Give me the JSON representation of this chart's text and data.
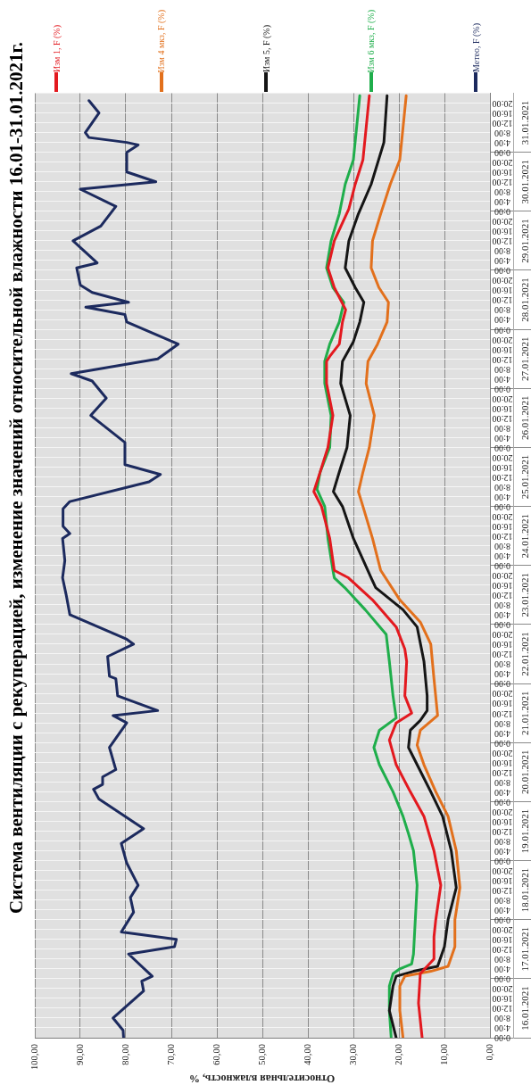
{
  "chart_data": {
    "type": "line",
    "orientation": "horizontal",
    "title": "Система вентиляции с рекуперацией, изменение значений относительной влажности 16.01-31.01.2021г.",
    "xlabel": "Относительная влажность, %",
    "xlim": [
      100,
      0
    ],
    "xticks": [
      {
        "value": 100,
        "label": "100,00"
      },
      {
        "value": 90,
        "label": "90,00"
      },
      {
        "value": 80,
        "label": "80,00"
      },
      {
        "value": 70,
        "label": "70,00"
      },
      {
        "value": 60,
        "label": "60,00"
      },
      {
        "value": 50,
        "label": "50,00"
      },
      {
        "value": 40,
        "label": "40,00"
      },
      {
        "value": 30,
        "label": "30,00"
      },
      {
        "value": 20,
        "label": "20,00"
      },
      {
        "value": 10,
        "label": "10,00"
      },
      {
        "value": 0,
        "label": "0,00"
      }
    ],
    "ylim": [
      "2021-01-16T00:00",
      "2021-02-01T00:00"
    ],
    "yticks": [
      {
        "value": "2021-01-16T00:00",
        "label": "0:00"
      },
      {
        "value": "2021-01-16T04:00",
        "label": "4:00"
      },
      {
        "value": "2021-01-16T08:00",
        "label": "8:00"
      },
      {
        "value": "2021-01-16T12:00",
        "label": "12:00"
      },
      {
        "value": "2021-01-16T16:00",
        "label": "16:00"
      },
      {
        "value": "2021-01-16T20:00",
        "label": "20:00"
      },
      {
        "value": "2021-01-17T00:00",
        "label": "0:00"
      },
      {
        "value": "2021-01-17T04:00",
        "label": "4:00"
      },
      {
        "value": "2021-01-17T08:00",
        "label": "8:00"
      },
      {
        "value": "2021-01-17T12:00",
        "label": "12:00"
      },
      {
        "value": "2021-01-17T16:00",
        "label": "16:00"
      },
      {
        "value": "2021-01-17T20:00",
        "label": "20:00"
      },
      {
        "value": "2021-01-18T00:00",
        "label": "0:00"
      },
      {
        "value": "2021-01-18T04:00",
        "label": "4:00"
      },
      {
        "value": "2021-01-18T08:00",
        "label": "8:00"
      },
      {
        "value": "2021-01-18T12:00",
        "label": "12:00"
      },
      {
        "value": "2021-01-18T16:00",
        "label": "16:00"
      },
      {
        "value": "2021-01-18T20:00",
        "label": "20:00"
      },
      {
        "value": "2021-01-19T00:00",
        "label": "0:00"
      },
      {
        "value": "2021-01-19T04:00",
        "label": "4:00"
      },
      {
        "value": "2021-01-19T08:00",
        "label": "8:00"
      },
      {
        "value": "2021-01-19T12:00",
        "label": "12:00"
      },
      {
        "value": "2021-01-19T16:00",
        "label": "16:00"
      },
      {
        "value": "2021-01-19T20:00",
        "label": "20:00"
      },
      {
        "value": "2021-01-20T00:00",
        "label": "0:00"
      },
      {
        "value": "2021-01-20T04:00",
        "label": "4:00"
      },
      {
        "value": "2021-01-20T08:00",
        "label": "8:00"
      },
      {
        "value": "2021-01-20T12:00",
        "label": "12:00"
      },
      {
        "value": "2021-01-20T16:00",
        "label": "16:00"
      },
      {
        "value": "2021-01-20T20:00",
        "label": "20:00"
      },
      {
        "value": "2021-01-21T00:00",
        "label": "0:00"
      },
      {
        "value": "2021-01-21T04:00",
        "label": "4:00"
      },
      {
        "value": "2021-01-21T08:00",
        "label": "8:00"
      },
      {
        "value": "2021-01-21T12:00",
        "label": "12:00"
      },
      {
        "value": "2021-01-21T16:00",
        "label": "16:00"
      },
      {
        "value": "2021-01-21T20:00",
        "label": "20:00"
      },
      {
        "value": "2021-01-22T00:00",
        "label": "0:00"
      },
      {
        "value": "2021-01-22T04:00",
        "label": "4:00"
      },
      {
        "value": "2021-01-22T08:00",
        "label": "8:00"
      },
      {
        "value": "2021-01-22T12:00",
        "label": "12:00"
      },
      {
        "value": "2021-01-22T16:00",
        "label": "16:00"
      },
      {
        "value": "2021-01-22T20:00",
        "label": "20:00"
      },
      {
        "value": "2021-01-23T00:00",
        "label": "0:00"
      },
      {
        "value": "2021-01-23T04:00",
        "label": "4:00"
      },
      {
        "value": "2021-01-23T08:00",
        "label": "8:00"
      },
      {
        "value": "2021-01-23T12:00",
        "label": "12:00"
      },
      {
        "value": "2021-01-23T16:00",
        "label": "16:00"
      },
      {
        "value": "2021-01-23T20:00",
        "label": "20:00"
      },
      {
        "value": "2021-01-24T00:00",
        "label": "0:00"
      },
      {
        "value": "2021-01-24T04:00",
        "label": "4:00"
      },
      {
        "value": "2021-01-24T08:00",
        "label": "8:00"
      },
      {
        "value": "2021-01-24T12:00",
        "label": "12:00"
      },
      {
        "value": "2021-01-24T16:00",
        "label": "16:00"
      },
      {
        "value": "2021-01-24T20:00",
        "label": "20:00"
      },
      {
        "value": "2021-01-25T00:00",
        "label": "0:00"
      },
      {
        "value": "2021-01-25T04:00",
        "label": "4:00"
      },
      {
        "value": "2021-01-25T08:00",
        "label": "8:00"
      },
      {
        "value": "2021-01-25T12:00",
        "label": "12:00"
      },
      {
        "value": "2021-01-25T16:00",
        "label": "16:00"
      },
      {
        "value": "2021-01-25T20:00",
        "label": "20:00"
      },
      {
        "value": "2021-01-26T00:00",
        "label": "0:00"
      },
      {
        "value": "2021-01-26T04:00",
        "label": "4:00"
      },
      {
        "value": "2021-01-26T08:00",
        "label": "8:00"
      },
      {
        "value": "2021-01-26T12:00",
        "label": "12:00"
      },
      {
        "value": "2021-01-26T16:00",
        "label": "16:00"
      },
      {
        "value": "2021-01-26T20:00",
        "label": "20:00"
      },
      {
        "value": "2021-01-27T00:00",
        "label": "0:00"
      },
      {
        "value": "2021-01-27T04:00",
        "label": "4:00"
      },
      {
        "value": "2021-01-27T08:00",
        "label": "8:00"
      },
      {
        "value": "2021-01-27T12:00",
        "label": "12:00"
      },
      {
        "value": "2021-01-27T16:00",
        "label": "16:00"
      },
      {
        "value": "2021-01-27T20:00",
        "label": "20:00"
      },
      {
        "value": "2021-01-28T00:00",
        "label": "0:00"
      },
      {
        "value": "2021-01-28T04:00",
        "label": "4:00"
      },
      {
        "value": "2021-01-28T08:00",
        "label": "8:00"
      },
      {
        "value": "2021-01-28T12:00",
        "label": "12:00"
      },
      {
        "value": "2021-01-28T16:00",
        "label": "16:00"
      },
      {
        "value": "2021-01-28T20:00",
        "label": "20:00"
      },
      {
        "value": "2021-01-29T00:00",
        "label": "0:00"
      },
      {
        "value": "2021-01-29T04:00",
        "label": "4:00"
      },
      {
        "value": "2021-01-29T08:00",
        "label": "8:00"
      },
      {
        "value": "2021-01-29T12:00",
        "label": "12:00"
      },
      {
        "value": "2021-01-29T16:00",
        "label": "16:00"
      },
      {
        "value": "2021-01-29T20:00",
        "label": "20:00"
      },
      {
        "value": "2021-01-30T00:00",
        "label": "0:00"
      },
      {
        "value": "2021-01-30T04:00",
        "label": "4:00"
      },
      {
        "value": "2021-01-30T08:00",
        "label": "8:00"
      },
      {
        "value": "2021-01-30T12:00",
        "label": "12:00"
      },
      {
        "value": "2021-01-30T16:00",
        "label": "16:00"
      },
      {
        "value": "2021-01-30T20:00",
        "label": "20:00"
      },
      {
        "value": "2021-01-31T00:00",
        "label": "0:00"
      },
      {
        "value": "2021-01-31T04:00",
        "label": "4:00"
      },
      {
        "value": "2021-01-31T08:00",
        "label": "8:00"
      },
      {
        "value": "2021-01-31T12:00",
        "label": "12:00"
      },
      {
        "value": "2021-01-31T16:00",
        "label": "16:00"
      },
      {
        "value": "2021-01-31T20:00",
        "label": "20:00"
      }
    ],
    "y2lim": [
      "2021-01-16T00:00",
      "2021-02-01T00:00"
    ],
    "y2ticks": [
      {
        "value": "2021-01-16T12:00",
        "label": "16.01.2021"
      },
      {
        "value": "2021-01-17T12:00",
        "label": "17.01.2021"
      },
      {
        "value": "2021-01-18T12:00",
        "label": "18.01.2021"
      },
      {
        "value": "2021-01-19T12:00",
        "label": "19.01.2021"
      },
      {
        "value": "2021-01-20T12:00",
        "label": "20.01.2021"
      },
      {
        "value": "2021-01-21T12:00",
        "label": "21.01.2021"
      },
      {
        "value": "2021-01-22T12:00",
        "label": "22.01.2021"
      },
      {
        "value": "2021-01-23T12:00",
        "label": "23.01.2021"
      },
      {
        "value": "2021-01-24T12:00",
        "label": "24.01.2021"
      },
      {
        "value": "2021-01-25T12:00",
        "label": "25.01.2021"
      },
      {
        "value": "2021-01-26T12:00",
        "label": "26.01.2021"
      },
      {
        "value": "2021-01-27T12:00",
        "label": "27.01.2021"
      },
      {
        "value": "2021-01-28T12:00",
        "label": "28.01.2021"
      },
      {
        "value": "2021-01-29T12:00",
        "label": "29.01.2021"
      },
      {
        "value": "2021-01-30T12:00",
        "label": "30.01.2021"
      },
      {
        "value": "2021-01-31T12:00",
        "label": "31.01.2021"
      }
    ],
    "grid": true,
    "legend": "top",
    "series": [
      {
        "name": "Изм 1, F (%)",
        "color": "#e3191f",
        "x": [
          "2021-01-16T00:00",
          "2021-01-16T14:00",
          "2021-01-17T02:00",
          "2021-01-17T08:00",
          "2021-01-17T17:00",
          "2021-01-18T00:00",
          "2021-01-18T14:00",
          "2021-01-19T04:00",
          "2021-01-19T18:00",
          "2021-01-20T04:00",
          "2021-01-20T15:00",
          "2021-01-21T01:00",
          "2021-01-21T08:00",
          "2021-01-21T12:00",
          "2021-01-21T19:00",
          "2021-01-22T09:00",
          "2021-01-22T14:00",
          "2021-01-22T23:00",
          "2021-01-23T10:00",
          "2021-01-23T19:00",
          "2021-01-23T22:00",
          "2021-01-24T11:00",
          "2021-01-25T00:00",
          "2021-01-25T06:00",
          "2021-01-25T14:00",
          "2021-01-26T00:00",
          "2021-01-26T13:00",
          "2021-01-27T02:00",
          "2021-01-27T11:00",
          "2021-01-27T13:00",
          "2021-01-27T18:00",
          "2021-01-28T03:00",
          "2021-01-28T08:00",
          "2021-01-28T17:00",
          "2021-01-29T01:00",
          "2021-01-29T12:00",
          "2021-01-30T01:00",
          "2021-01-30T11:00",
          "2021-01-30T21:00",
          "2021-01-31T10:00",
          "2021-01-31T23:00"
        ],
        "values": [
          14.9,
          15.7,
          15.3,
          12.3,
          12.3,
          11.9,
          10.8,
          12.3,
          14.5,
          17.5,
          20.6,
          22.1,
          20.6,
          17.2,
          18.7,
          18.3,
          18.7,
          20.6,
          25.8,
          31.1,
          34.2,
          35.2,
          37.0,
          38.7,
          37.3,
          35.6,
          34.5,
          35.9,
          35.9,
          35.2,
          33.1,
          32.4,
          31.7,
          34.2,
          35.6,
          34.2,
          31.0,
          29.6,
          27.9,
          27.2,
          26.5
        ]
      },
      {
        "name": "Изм 4 мкз, F (%)",
        "color": "#e2701c",
        "x": [
          "2021-01-16T00:00",
          "2021-01-16T11:00",
          "2021-01-16T21:00",
          "2021-01-17T01:00",
          "2021-01-17T03:00",
          "2021-01-17T05:00",
          "2021-01-17T13:00",
          "2021-01-18T00:00",
          "2021-01-18T13:00",
          "2021-01-19T04:00",
          "2021-01-19T18:00",
          "2021-01-20T04:00",
          "2021-01-20T15:00",
          "2021-01-20T23:00",
          "2021-01-21T05:00",
          "2021-01-21T11:00",
          "2021-01-22T02:00",
          "2021-01-22T16:00",
          "2021-01-23T01:00",
          "2021-01-23T10:00",
          "2021-01-23T22:00",
          "2021-01-24T11:00",
          "2021-01-25T00:00",
          "2021-01-25T06:00",
          "2021-01-25T14:00",
          "2021-01-26T00:00",
          "2021-01-26T13:00",
          "2021-01-27T02:00",
          "2021-01-27T11:00",
          "2021-01-27T18:00",
          "2021-01-28T03:00",
          "2021-01-28T11:00",
          "2021-01-28T17:00",
          "2021-01-29T01:00",
          "2021-01-29T12:00",
          "2021-01-29T23:00",
          "2021-01-30T11:00",
          "2021-01-30T21:00",
          "2021-01-31T10:00",
          "2021-01-31T23:00"
        ],
        "values": [
          19.1,
          19.8,
          19.8,
          18.7,
          13.0,
          9.2,
          7.7,
          7.7,
          6.6,
          7.4,
          9.2,
          11.9,
          14.5,
          16.0,
          15.3,
          11.5,
          12.3,
          13.0,
          15.3,
          19.8,
          24.0,
          25.8,
          27.9,
          28.9,
          27.9,
          26.5,
          25.4,
          27.2,
          26.8,
          24.7,
          22.6,
          22.3,
          24.4,
          26.1,
          25.8,
          24.0,
          21.9,
          19.8,
          19.1,
          18.4
        ]
      },
      {
        "name": "Изм 5, F (%)",
        "color": "#151515",
        "x": [
          "2021-01-16T00:00",
          "2021-01-16T11:00",
          "2021-01-16T21:00",
          "2021-01-17T01:00",
          "2021-01-17T03:00",
          "2021-01-17T05:00",
          "2021-01-17T13:00",
          "2021-01-18T00:00",
          "2021-01-18T13:00",
          "2021-01-19T04:00",
          "2021-01-19T18:00",
          "2021-01-20T04:00",
          "2021-01-20T15:00",
          "2021-01-20T22:00",
          "2021-01-21T05:00",
          "2021-01-21T09:00",
          "2021-01-21T13:00",
          "2021-01-21T19:00",
          "2021-01-22T09:00",
          "2021-01-22T23:00",
          "2021-01-23T06:00",
          "2021-01-23T15:00",
          "2021-01-23T19:00",
          "2021-01-24T11:00",
          "2021-01-25T00:00",
          "2021-01-25T06:00",
          "2021-01-25T14:00",
          "2021-01-26T00:00",
          "2021-01-26T13:00",
          "2021-01-27T02:00",
          "2021-01-27T11:00",
          "2021-01-27T19:00",
          "2021-01-28T03:00",
          "2021-01-28T11:00",
          "2021-01-28T17:00",
          "2021-01-29T01:00",
          "2021-01-29T12:00",
          "2021-01-29T23:00",
          "2021-01-30T11:00",
          "2021-01-31T04:00",
          "2021-01-31T23:00"
        ],
        "values": [
          20.6,
          22.1,
          21.3,
          20.6,
          16.8,
          11.5,
          10.0,
          9.2,
          7.4,
          8.5,
          10.4,
          13.0,
          16.0,
          17.9,
          17.5,
          15.3,
          13.8,
          13.8,
          14.5,
          16.0,
          19.1,
          25.1,
          26.1,
          30.0,
          32.4,
          34.4,
          33.1,
          31.4,
          30.7,
          32.8,
          32.4,
          30.0,
          28.6,
          27.7,
          29.6,
          31.8,
          31.0,
          28.9,
          26.1,
          23.3,
          22.6
        ]
      },
      {
        "name": "Изм 6 мкз, F (%)",
        "color": "#1fae4b",
        "x": [
          "2021-01-16T00:00",
          "2021-01-16T11:00",
          "2021-01-16T21:00",
          "2021-01-17T02:00",
          "2021-01-17T04:00",
          "2021-01-17T06:00",
          "2021-01-17T10:00",
          "2021-01-18T00:00",
          "2021-01-18T14:00",
          "2021-01-19T04:00",
          "2021-01-19T11:00",
          "2021-01-19T18:00",
          "2021-01-20T04:00",
          "2021-01-20T15:00",
          "2021-01-20T22:00",
          "2021-01-21T05:00",
          "2021-01-21T10:00",
          "2021-01-21T19:00",
          "2021-01-22T09:00",
          "2021-01-22T20:00",
          "2021-01-23T06:00",
          "2021-01-23T15:00",
          "2021-01-23T19:00",
          "2021-01-23T22:00",
          "2021-01-24T11:00",
          "2021-01-25T00:00",
          "2021-01-25T07:00",
          "2021-01-25T14:00",
          "2021-01-26T00:00",
          "2021-01-26T13:00",
          "2021-01-27T02:00",
          "2021-01-27T11:00",
          "2021-01-27T18:00",
          "2021-01-28T03:00",
          "2021-01-28T11:00",
          "2021-01-28T17:00",
          "2021-01-29T01:00",
          "2021-01-29T12:00",
          "2021-01-29T23:00",
          "2021-01-30T11:00",
          "2021-01-30T21:00",
          "2021-01-31T10:00",
          "2021-01-31T23:00"
        ],
        "values": [
          21.7,
          22.1,
          22.1,
          21.3,
          19.8,
          17.2,
          16.8,
          16.4,
          16.0,
          16.8,
          17.9,
          19.1,
          21.3,
          24.3,
          25.5,
          24.3,
          20.6,
          21.3,
          22.1,
          22.8,
          27.4,
          31.9,
          34.2,
          34.5,
          35.6,
          36.3,
          38.0,
          37.3,
          35.2,
          34.9,
          36.3,
          36.3,
          35.2,
          33.1,
          32.1,
          34.5,
          35.9,
          34.9,
          33.1,
          31.8,
          30.0,
          29.3,
          28.6
        ]
      },
      {
        "name": "Метео, F (%)",
        "color": "#1c2a5e",
        "x": [
          "2021-01-16T00:00",
          "2021-01-16T03:00",
          "2021-01-16T08:00",
          "2021-01-16T19:00",
          "2021-01-16T23:00",
          "2021-01-17T01:00",
          "2021-01-17T10:00",
          "2021-01-17T13:00",
          "2021-01-17T16:00",
          "2021-01-17T19:00",
          "2021-01-18T03:00",
          "2021-01-18T09:00",
          "2021-01-18T14:00",
          "2021-01-18T23:00",
          "2021-01-19T07:00",
          "2021-01-19T13:00",
          "2021-01-20T01:00",
          "2021-01-20T05:00",
          "2021-01-20T07:00",
          "2021-01-20T10:00",
          "2021-01-20T13:00",
          "2021-01-20T22:00",
          "2021-01-21T08:00",
          "2021-01-21T11:00",
          "2021-01-21T13:00",
          "2021-01-21T19:00",
          "2021-01-22T02:00",
          "2021-01-22T03:00",
          "2021-01-22T11:00",
          "2021-01-22T16:00",
          "2021-01-22T18:00",
          "2021-01-23T04:00",
          "2021-01-23T12:00",
          "2021-01-23T19:00",
          "2021-01-24T02:00",
          "2021-01-24T11:00",
          "2021-01-24T13:00",
          "2021-01-24T16:00",
          "2021-01-24T23:00",
          "2021-01-25T02:00",
          "2021-01-25T10:00",
          "2021-01-25T13:00",
          "2021-01-25T17:00",
          "2021-01-26T02:00",
          "2021-01-26T13:00",
          "2021-01-26T20:00",
          "2021-01-27T03:00",
          "2021-01-27T06:00",
          "2021-01-27T12:00",
          "2021-01-27T18:00",
          "2021-01-28T03:00",
          "2021-01-28T06:00",
          "2021-01-28T09:00",
          "2021-01-28T11:00",
          "2021-01-28T15:00",
          "2021-01-28T18:00",
          "2021-01-29T01:00",
          "2021-01-29T03:00",
          "2021-01-29T12:00",
          "2021-01-29T18:00",
          "2021-01-30T02:00",
          "2021-01-30T09:00",
          "2021-01-30T12:00",
          "2021-01-30T16:00",
          "2021-01-31T00:00",
          "2021-01-31T03:00",
          "2021-01-31T04:00",
          "2021-01-31T06:00",
          "2021-01-31T08:00",
          "2021-01-31T16:00",
          "2021-01-31T21:00"
        ],
        "values": [
          80.5,
          80.6,
          82.8,
          76.1,
          76.5,
          74.2,
          79.4,
          69.3,
          68.9,
          81.0,
          78.3,
          79.0,
          77.3,
          79.8,
          81.0,
          76.1,
          85.9,
          87.1,
          85.1,
          85.1,
          82.2,
          83.6,
          79.8,
          82.8,
          73.0,
          81.8,
          82.2,
          83.6,
          84.0,
          78.3,
          79.8,
          92.3,
          93.1,
          93.9,
          93.4,
          93.9,
          92.3,
          93.8,
          93.8,
          92.3,
          74.9,
          72.4,
          80.2,
          80.2,
          87.7,
          84.3,
          87.4,
          92.0,
          73.0,
          68.5,
          79.8,
          80.2,
          88.8,
          79.4,
          87.4,
          90.0,
          90.8,
          86.3,
          91.6,
          85.5,
          82.2,
          90.0,
          73.4,
          79.8,
          79.8,
          77.3,
          79.8,
          88.1,
          88.9,
          85.9,
          88.1
        ]
      }
    ]
  }
}
